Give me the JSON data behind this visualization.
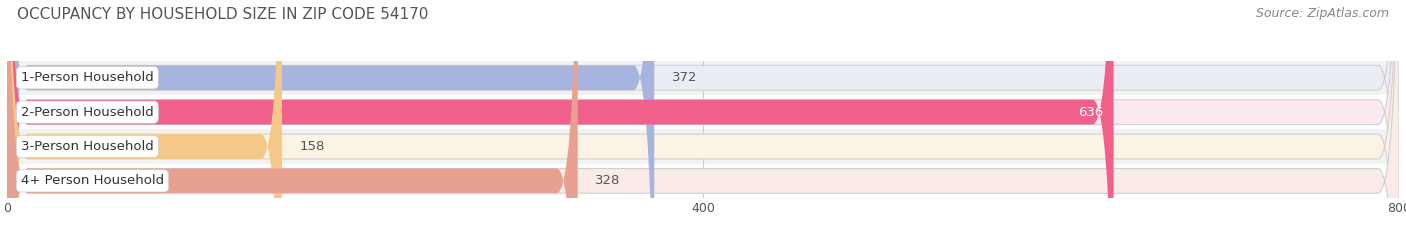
{
  "title": "OCCUPANCY BY HOUSEHOLD SIZE IN ZIP CODE 54170",
  "source": "Source: ZipAtlas.com",
  "categories": [
    "1-Person Household",
    "2-Person Household",
    "3-Person Household",
    "4+ Person Household"
  ],
  "values": [
    372,
    636,
    158,
    328
  ],
  "bar_colors": [
    "#a8b4e0",
    "#f0608a",
    "#f5c88a",
    "#e8a090"
  ],
  "bar_bg_colors": [
    "#eaedf5",
    "#fce8ef",
    "#fdf3e5",
    "#faeae8"
  ],
  "xlim": [
    0,
    800
  ],
  "xticks": [
    0,
    400,
    800
  ],
  "value_label_colors": [
    "#666666",
    "#ffffff",
    "#666666",
    "#666666"
  ],
  "background_color": "#ffffff",
  "row_bg_color": "#f2f2f2",
  "title_fontsize": 11,
  "source_fontsize": 9,
  "label_fontsize": 9.5,
  "tick_fontsize": 9,
  "value_fontsize": 9.5
}
